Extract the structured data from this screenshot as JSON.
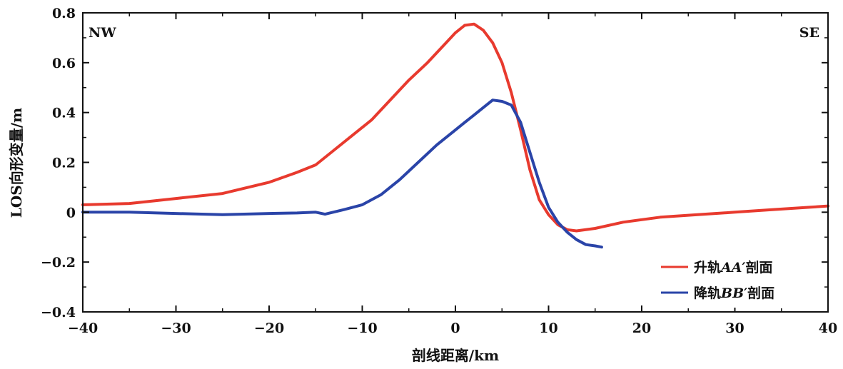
{
  "chart_data": {
    "type": "line",
    "xlabel": "剖线距离/km",
    "ylabel": "LOS向形变量/m",
    "xlim": [
      -40,
      40
    ],
    "ylim": [
      -0.4,
      0.8
    ],
    "xticks": [
      -40,
      -30,
      -20,
      -10,
      0,
      10,
      20,
      30,
      40
    ],
    "xtick_labels": [
      "−40",
      "−30",
      "−20",
      "−10",
      "0",
      "10",
      "20",
      "30",
      "40"
    ],
    "yticks": [
      0.8,
      0.6,
      0.4,
      0.2,
      0,
      -0.2,
      -0.4
    ],
    "ytick_labels": [
      "0.8",
      "0.6",
      "0.4",
      "0.2",
      "0",
      "−0.2",
      "−0.4"
    ],
    "grid": false,
    "annotations": {
      "left": "NW",
      "right": "SE"
    },
    "legend_position": "bottom-right",
    "series": [
      {
        "name": "升轨AA′剖面",
        "legend_prefix": "升轨",
        "legend_italic": "AA′",
        "legend_suffix": "剖面",
        "color": "#e83a2e",
        "x": [
          -40,
          -35,
          -30,
          -25,
          -20,
          -17,
          -15,
          -13,
          -11,
          -9,
          -7,
          -5,
          -3,
          -1,
          0,
          1,
          2,
          3,
          4,
          5,
          6,
          7,
          8,
          9,
          10,
          11,
          12,
          13,
          15,
          18,
          22,
          26,
          30,
          34,
          38,
          40
        ],
        "y": [
          0.03,
          0.035,
          0.055,
          0.075,
          0.12,
          0.16,
          0.19,
          0.25,
          0.31,
          0.37,
          0.45,
          0.53,
          0.6,
          0.68,
          0.72,
          0.75,
          0.755,
          0.73,
          0.68,
          0.6,
          0.48,
          0.33,
          0.17,
          0.05,
          -0.01,
          -0.05,
          -0.07,
          -0.075,
          -0.065,
          -0.04,
          -0.02,
          -0.01,
          0.0,
          0.01,
          0.02,
          0.025
        ]
      },
      {
        "name": "降轨BB′剖面",
        "legend_prefix": "降轨",
        "legend_italic": "BB′",
        "legend_suffix": "剖面",
        "color": "#2a44a8",
        "x": [
          -40,
          -35,
          -30,
          -25,
          -20,
          -17,
          -15,
          -14,
          -12,
          -10,
          -8,
          -6,
          -4,
          -2,
          0,
          1,
          2,
          3,
          4,
          5,
          6,
          7,
          8,
          9,
          10,
          11,
          12,
          13,
          14,
          15,
          15.7
        ],
        "y": [
          0.0,
          0.0,
          -0.005,
          -0.01,
          -0.005,
          -0.003,
          0.0,
          -0.008,
          0.01,
          0.03,
          0.07,
          0.13,
          0.2,
          0.27,
          0.33,
          0.36,
          0.39,
          0.42,
          0.45,
          0.445,
          0.43,
          0.36,
          0.24,
          0.12,
          0.02,
          -0.04,
          -0.08,
          -0.11,
          -0.13,
          -0.135,
          -0.14
        ]
      }
    ]
  }
}
